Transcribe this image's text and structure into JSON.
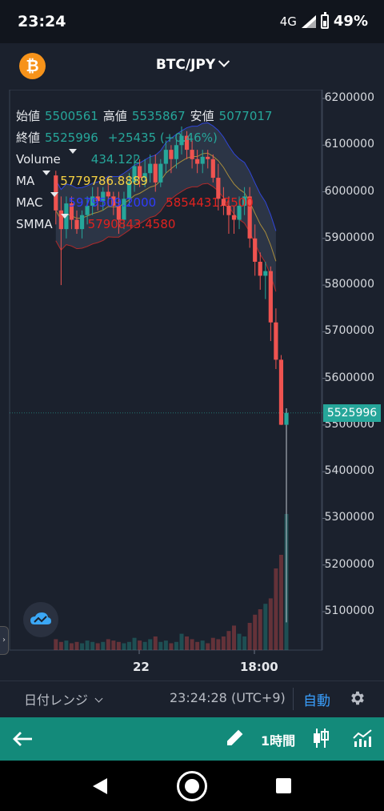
{
  "status_bar": {
    "time": "23:24",
    "network": "4G",
    "battery": "49%"
  },
  "header": {
    "pair": "BTC/JPY",
    "logo_symbol": "₿"
  },
  "legend": {
    "open_label": "始値",
    "open": "5500561",
    "high_label": "高値",
    "high": "5535867",
    "low_label": "安値",
    "low": "5077017",
    "close_label": "終値",
    "close": "5525996",
    "change": "+25435 (+0.46%)",
    "volume_label": "Volume",
    "volume": "434.122",
    "ma_label": "MA",
    "ma": "5779786.8889",
    "mac_label": "MAC",
    "mac_upper": "5979509.2000",
    "mac_lower": "5854431.7500",
    "smma_label": "SMMA",
    "smma": "5790843.4580"
  },
  "price_axis": [
    "6200000",
    "6100000",
    "6000000",
    "5900000",
    "5800000",
    "5700000",
    "5600000",
    "5500000",
    "5400000",
    "5300000",
    "5200000",
    "5100000"
  ],
  "current_price": "5525996",
  "time_axis": [
    "22",
    "18:00"
  ],
  "bottom": {
    "range_label": "日付レンジ",
    "clock": "23:24:28 (UTC+9)",
    "auto_label": "自動"
  },
  "toolbar": {
    "interval": "1時間"
  },
  "colors": {
    "up": "#26a69a",
    "down": "#ef5350",
    "accent": "#138a7a"
  },
  "chart_data": {
    "type": "candlestick",
    "y_range": [
      5020000,
      6220000
    ],
    "candles": [
      [
        6035000,
        6045000,
        5930000,
        5960000
      ],
      [
        5960000,
        5990000,
        5800000,
        5920000
      ],
      [
        5920000,
        5990000,
        5900000,
        5975000
      ],
      [
        5975000,
        5990000,
        5920000,
        5940000
      ],
      [
        5940000,
        5960000,
        5910000,
        5920000
      ],
      [
        5920000,
        5960000,
        5900000,
        5950000
      ],
      [
        5950000,
        5990000,
        5930000,
        5970000
      ],
      [
        5970000,
        6010000,
        5950000,
        5990000
      ],
      [
        5990000,
        6010000,
        5960000,
        5980000
      ],
      [
        5980000,
        6010000,
        5960000,
        6000000
      ],
      [
        6000000,
        6030000,
        5970000,
        5990000
      ],
      [
        5990000,
        6000000,
        5950000,
        5970000
      ],
      [
        5970000,
        6000000,
        5910000,
        5940000
      ],
      [
        5940000,
        6000000,
        5920000,
        5985000
      ],
      [
        5985000,
        6040000,
        5970000,
        6020000
      ],
      [
        6020000,
        6080000,
        6000000,
        6055000
      ],
      [
        6055000,
        6070000,
        6010000,
        6030000
      ],
      [
        6030000,
        6070000,
        6010000,
        6040000
      ],
      [
        6040000,
        6080000,
        6020000,
        6060000
      ],
      [
        6060000,
        6080000,
        6000000,
        6020000
      ],
      [
        6020000,
        6070000,
        6010000,
        6060000
      ],
      [
        6060000,
        6110000,
        6040000,
        6090000
      ],
      [
        6090000,
        6100000,
        6040000,
        6070000
      ],
      [
        6070000,
        6110000,
        6050000,
        6100000
      ],
      [
        6100000,
        6140000,
        6080000,
        6120000
      ],
      [
        6120000,
        6130000,
        6070000,
        6090000
      ],
      [
        6090000,
        6110000,
        6050000,
        6070000
      ],
      [
        6070000,
        6090000,
        6040000,
        6060000
      ],
      [
        6060000,
        6090000,
        6040000,
        6075000
      ],
      [
        6075000,
        6090000,
        6050000,
        6070000
      ],
      [
        6070000,
        6080000,
        6020000,
        6030000
      ],
      [
        6030000,
        6060000,
        5960000,
        5985000
      ],
      [
        5985000,
        6010000,
        5950000,
        5970000
      ],
      [
        5970000,
        5990000,
        5910000,
        5950000
      ],
      [
        5950000,
        5970000,
        5910000,
        5940000
      ],
      [
        5940000,
        5990000,
        5920000,
        5970000
      ],
      [
        5970000,
        6010000,
        5950000,
        5990000
      ],
      [
        5990000,
        6010000,
        5880000,
        5900000
      ],
      [
        5900000,
        5930000,
        5820000,
        5850000
      ],
      [
        5850000,
        5870000,
        5790000,
        5820000
      ],
      [
        5820000,
        5850000,
        5770000,
        5830000
      ],
      [
        5830000,
        5840000,
        5680000,
        5720000
      ],
      [
        5720000,
        5750000,
        5620000,
        5640000
      ],
      [
        5640000,
        5650000,
        5500000,
        5500561
      ],
      [
        5500561,
        5535867,
        5077017,
        5525996
      ]
    ],
    "volumes": [
      8,
      6,
      7,
      5,
      6,
      5,
      7,
      6,
      5,
      6,
      8,
      7,
      6,
      5,
      6,
      9,
      7,
      6,
      8,
      10,
      6,
      7,
      5,
      6,
      12,
      10,
      8,
      6,
      7,
      5,
      9,
      8,
      10,
      14,
      18,
      12,
      10,
      20,
      26,
      30,
      34,
      38,
      60,
      70,
      100
    ]
  }
}
